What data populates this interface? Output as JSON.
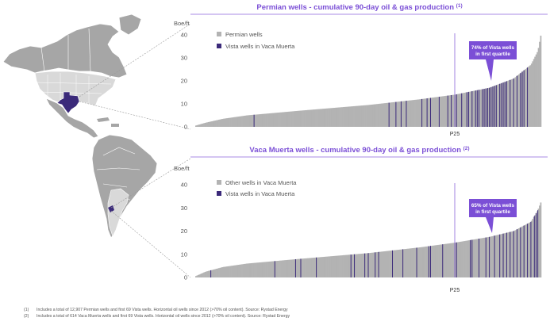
{
  "colors": {
    "accent": "#7b4fd6",
    "dark_purple": "#3b2a7a",
    "gray_bar": "#b3b3b3",
    "map_gray": "#a6a6a6",
    "map_light": "#d9d9d9",
    "title_line": "#a98be6"
  },
  "map": {
    "highlight_1": "Texas (Permian Basin)",
    "highlight_2": "Vaca Muerta, Argentina"
  },
  "chart_data": [
    {
      "type": "bar",
      "title": "Permian wells - cumulative 90-day oil & gas production",
      "title_footnote": "(1)",
      "ylabel": "Boe/ft",
      "ylim": [
        0,
        40
      ],
      "yticks": [
        "0",
        "10",
        "20",
        "30",
        "40"
      ],
      "x_marker_label": "P25",
      "x_marker_position_pct": 75,
      "curve": [
        {
          "pct": 0,
          "value": 0.5
        },
        {
          "pct": 3,
          "value": 1.8
        },
        {
          "pct": 8,
          "value": 3.5
        },
        {
          "pct": 15,
          "value": 5.0
        },
        {
          "pct": 30,
          "value": 7.0
        },
        {
          "pct": 50,
          "value": 9.5
        },
        {
          "pct": 65,
          "value": 12.0
        },
        {
          "pct": 75,
          "value": 14.0
        },
        {
          "pct": 85,
          "value": 17.0
        },
        {
          "pct": 92,
          "value": 21.0
        },
        {
          "pct": 97,
          "value": 27.0
        },
        {
          "pct": 99,
          "value": 33.0
        },
        {
          "pct": 100,
          "value": 41.0
        }
      ],
      "vista_well_positions_pct": [
        17,
        56,
        58,
        59.5,
        61,
        65.5,
        67,
        68,
        70.5,
        73,
        74,
        75.5,
        77,
        78.5,
        79,
        80,
        81,
        81.5,
        82,
        83,
        83.5,
        84,
        84.5,
        85,
        85.5,
        86,
        86.5,
        87,
        88,
        88.5,
        89,
        89.5,
        90,
        91,
        92,
        93,
        94,
        94.5,
        95,
        96
      ],
      "legend": [
        {
          "label": "Permian wells",
          "color": "#b3b3b3"
        },
        {
          "label": "Vista wells in Vaca Muerta",
          "color": "#3b2a7a"
        }
      ],
      "annotation": "74% of Vista wells in first quartile"
    },
    {
      "type": "bar",
      "title": "Vaca Muerta wells - cumulative 90-day oil & gas production",
      "title_footnote": "(2)",
      "ylabel": "Boe/ft",
      "ylim": [
        0,
        40
      ],
      "yticks": [
        "0",
        "10",
        "20",
        "30",
        "40"
      ],
      "x_marker_label": "P25",
      "x_marker_position_pct": 75,
      "curve": [
        {
          "pct": 0,
          "value": 0.5
        },
        {
          "pct": 3,
          "value": 2.5
        },
        {
          "pct": 8,
          "value": 4.5
        },
        {
          "pct": 15,
          "value": 6.0
        },
        {
          "pct": 30,
          "value": 8.0
        },
        {
          "pct": 50,
          "value": 10.5
        },
        {
          "pct": 65,
          "value": 13.0
        },
        {
          "pct": 75,
          "value": 15.0
        },
        {
          "pct": 85,
          "value": 17.5
        },
        {
          "pct": 92,
          "value": 20.0
        },
        {
          "pct": 97,
          "value": 24.0
        },
        {
          "pct": 99,
          "value": 29.0
        },
        {
          "pct": 100,
          "value": 33.0
        }
      ],
      "vista_well_positions_pct": [
        4.5,
        23,
        29,
        30.5,
        35,
        45,
        46,
        49,
        50,
        52,
        53,
        57,
        60,
        64,
        67.5,
        68,
        71.5,
        75.5,
        79.5,
        80,
        82,
        84,
        85,
        86.5,
        88,
        89,
        90,
        91,
        92,
        93,
        94,
        95,
        96,
        97,
        98,
        98.5,
        99
      ],
      "legend": [
        {
          "label": "Other wells in Vaca Muerta",
          "color": "#b3b3b3"
        },
        {
          "label": "Vista wells in Vaca Muerta",
          "color": "#3b2a7a"
        }
      ],
      "annotation": "65% of Vista wells in first quartile"
    }
  ],
  "footnotes": [
    {
      "number": "(1)",
      "text": "Includes a total of 12,907 Permian wells and first 69 Vista wells. Horizontal oil wells since 2012 (>70% oil content). Source: Rystad Energy"
    },
    {
      "number": "(2)",
      "text": "Includes a total of 614 Vaca Muerta wells and first 69 Vista wells. Horizontal oil wells since 2012 (>70% oil content). Source: Rystad Energy"
    }
  ]
}
